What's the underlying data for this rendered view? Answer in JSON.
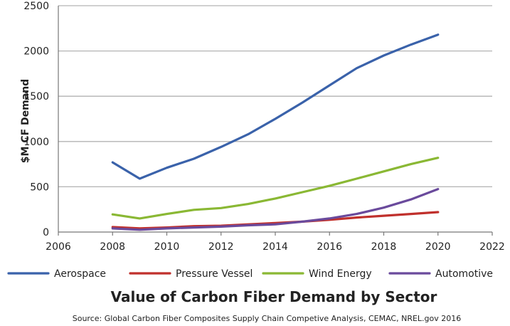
{
  "chart_data": {
    "type": "line",
    "title": "Value of Carbon Fiber Demand by Sector",
    "source": "Source: Global Carbon Fiber Composites Supply Chain Competive Analysis, CEMAC, NREL.gov 2016",
    "ylabel": "$M CF Demand",
    "xlabel": "",
    "xlim": [
      2006,
      2022
    ],
    "ylim": [
      0,
      2500
    ],
    "xticks": [
      2006,
      2008,
      2010,
      2012,
      2014,
      2016,
      2018,
      2020,
      2022
    ],
    "yticks": [
      0,
      500,
      1000,
      1500,
      2000,
      2500
    ],
    "grid": "horizontal",
    "legend_position": "bottom",
    "x": [
      2008,
      2009,
      2010,
      2011,
      2012,
      2013,
      2014,
      2015,
      2016,
      2017,
      2018,
      2019,
      2020
    ],
    "series": [
      {
        "name": "Aerospace",
        "color": "#3a62aa",
        "values": [
          770,
          590,
          710,
          810,
          940,
          1080,
          1250,
          1430,
          1620,
          1810,
          1950,
          2070,
          2180
        ]
      },
      {
        "name": "Pressure Vessel",
        "color": "#c0302c",
        "values": [
          55,
          40,
          50,
          65,
          70,
          85,
          100,
          115,
          135,
          160,
          180,
          200,
          220
        ]
      },
      {
        "name": "Wind Energy",
        "color": "#8ab834",
        "values": [
          195,
          150,
          200,
          245,
          265,
          310,
          370,
          440,
          510,
          590,
          670,
          750,
          820
        ]
      },
      {
        "name": "Automotive",
        "color": "#6a4a9c",
        "values": [
          40,
          25,
          40,
          50,
          60,
          75,
          85,
          115,
          150,
          200,
          270,
          360,
          475
        ]
      }
    ]
  }
}
